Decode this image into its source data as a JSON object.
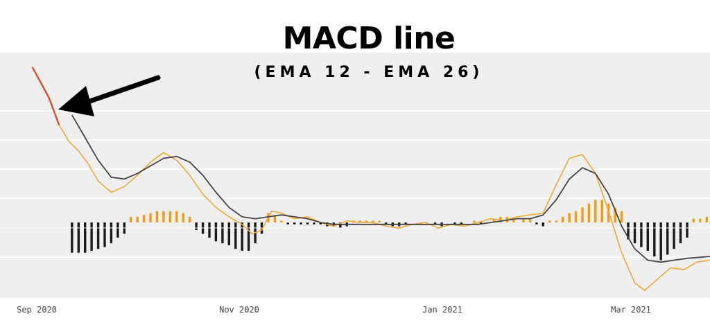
{
  "title": "MACD line",
  "subtitle": "(EMA 12 - EMA 26)",
  "colors": {
    "plot_background": "#efefef",
    "grid": "#ffffff",
    "macd_line": "#f0a830",
    "signal_line": "#444444",
    "hist_positive": "#f39c12",
    "hist_negative": "#1a1a1a",
    "highlight": "#e04a2a",
    "arrow": "#000000"
  },
  "chart_data": {
    "type": "line",
    "title": "MACD line",
    "subtitle": "(EMA 12 - EMA 26)",
    "x_tick_labels": [
      "Sep 2020",
      "Nov 2020",
      "Jan 2021",
      "Mar 2021"
    ],
    "xlim": [
      "2020-08-26",
      "2021-03-31"
    ],
    "ylim": [
      -4,
      9
    ],
    "grid": true,
    "annotation": "arrow pointing to the start of the MACD line",
    "series": [
      {
        "role": "macd",
        "color": "#f0a830",
        "points": [
          [
            "2020-09-05",
            8.2
          ],
          [
            "2020-09-10",
            6.6
          ],
          [
            "2020-09-13",
            5.2
          ],
          [
            "2020-09-16",
            4.3
          ],
          [
            "2020-09-19",
            3.8
          ],
          [
            "2020-09-22",
            3.1
          ],
          [
            "2020-09-25",
            2.2
          ],
          [
            "2020-09-29",
            1.6
          ],
          [
            "2020-10-03",
            1.9
          ],
          [
            "2020-10-07",
            2.5
          ],
          [
            "2020-10-11",
            3.2
          ],
          [
            "2020-10-15",
            3.7
          ],
          [
            "2020-10-19",
            3.3
          ],
          [
            "2020-10-23",
            2.5
          ],
          [
            "2020-10-27",
            1.5
          ],
          [
            "2020-10-31",
            0.8
          ],
          [
            "2020-11-04",
            0.3
          ],
          [
            "2020-11-08",
            -0.1
          ],
          [
            "2020-11-11",
            -0.6
          ],
          [
            "2020-11-14",
            -0.4
          ],
          [
            "2020-11-17",
            0.6
          ],
          [
            "2020-11-20",
            0.5
          ],
          [
            "2020-11-24",
            0.2
          ],
          [
            "2020-11-28",
            0.3
          ],
          [
            "2020-12-02",
            0.0
          ],
          [
            "2020-12-06",
            -0.2
          ],
          [
            "2020-12-10",
            0.1
          ],
          [
            "2020-12-14",
            0.0
          ],
          [
            "2020-12-18",
            0.0
          ],
          [
            "2020-12-22",
            -0.2
          ],
          [
            "2020-12-26",
            -0.3
          ],
          [
            "2020-12-30",
            -0.1
          ],
          [
            "2021-01-03",
            0.0
          ],
          [
            "2021-01-07",
            -0.3
          ],
          [
            "2021-01-11",
            -0.1
          ],
          [
            "2021-01-15",
            -0.2
          ],
          [
            "2021-01-19",
            0.0
          ],
          [
            "2021-01-23",
            0.2
          ],
          [
            "2021-01-27",
            0.1
          ],
          [
            "2021-01-31",
            0.3
          ],
          [
            "2021-02-04",
            0.4
          ],
          [
            "2021-02-08",
            0.5
          ],
          [
            "2021-02-12",
            2.0
          ],
          [
            "2021-02-16",
            3.4
          ],
          [
            "2021-02-20",
            3.6
          ],
          [
            "2021-02-24",
            2.6
          ],
          [
            "2021-02-28",
            0.6
          ],
          [
            "2021-03-04",
            -1.6
          ],
          [
            "2021-03-08",
            -3.2
          ],
          [
            "2021-03-11",
            -3.6
          ],
          [
            "2021-03-15",
            -3.0
          ],
          [
            "2021-03-19",
            -2.4
          ],
          [
            "2021-03-23",
            -2.5
          ],
          [
            "2021-03-27",
            -2.1
          ],
          [
            "2021-03-31",
            -2.0
          ]
        ]
      },
      {
        "role": "signal",
        "color": "#444444",
        "points": [
          [
            "2020-09-17",
            5.7
          ],
          [
            "2020-09-21",
            4.5
          ],
          [
            "2020-09-25",
            3.3
          ],
          [
            "2020-09-29",
            2.4
          ],
          [
            "2020-10-03",
            2.3
          ],
          [
            "2020-10-07",
            2.6
          ],
          [
            "2020-10-11",
            3.0
          ],
          [
            "2020-10-15",
            3.4
          ],
          [
            "2020-10-19",
            3.5
          ],
          [
            "2020-10-23",
            3.2
          ],
          [
            "2020-10-27",
            2.5
          ],
          [
            "2020-10-31",
            1.6
          ],
          [
            "2020-11-04",
            0.8
          ],
          [
            "2020-11-08",
            0.3
          ],
          [
            "2020-11-12",
            0.2
          ],
          [
            "2020-11-16",
            0.3
          ],
          [
            "2020-11-20",
            0.4
          ],
          [
            "2020-11-24",
            0.3
          ],
          [
            "2020-11-28",
            0.2
          ],
          [
            "2020-12-02",
            0.0
          ],
          [
            "2020-12-06",
            -0.1
          ],
          [
            "2020-12-10",
            -0.1
          ],
          [
            "2020-12-14",
            -0.1
          ],
          [
            "2020-12-18",
            -0.1
          ],
          [
            "2020-12-22",
            -0.1
          ],
          [
            "2020-12-26",
            -0.1
          ],
          [
            "2020-12-30",
            -0.1
          ],
          [
            "2021-01-03",
            -0.1
          ],
          [
            "2021-01-07",
            -0.1
          ],
          [
            "2021-01-11",
            -0.1
          ],
          [
            "2021-01-15",
            -0.1
          ],
          [
            "2021-01-19",
            -0.1
          ],
          [
            "2021-01-23",
            0.0
          ],
          [
            "2021-01-27",
            0.1
          ],
          [
            "2021-01-31",
            0.2
          ],
          [
            "2021-02-04",
            0.2
          ],
          [
            "2021-02-08",
            0.4
          ],
          [
            "2021-02-12",
            1.2
          ],
          [
            "2021-02-16",
            2.3
          ],
          [
            "2021-02-20",
            2.9
          ],
          [
            "2021-02-24",
            2.6
          ],
          [
            "2021-02-28",
            1.5
          ],
          [
            "2021-03-04",
            -0.2
          ],
          [
            "2021-03-08",
            -1.4
          ],
          [
            "2021-03-12",
            -2.0
          ],
          [
            "2021-03-16",
            -2.1
          ],
          [
            "2021-03-20",
            -2.0
          ],
          [
            "2021-03-24",
            -1.9
          ],
          [
            "2021-03-31",
            -1.8
          ]
        ]
      }
    ],
    "histogram": {
      "series_role": "macd_minus_signal",
      "bars": [
        [
          "2020-09-17",
          -1.6
        ],
        [
          "2020-09-19",
          -1.6
        ],
        [
          "2020-09-21",
          -1.6
        ],
        [
          "2020-09-23",
          -1.5
        ],
        [
          "2020-09-25",
          -1.4
        ],
        [
          "2020-09-27",
          -1.3
        ],
        [
          "2020-09-29",
          -1.1
        ],
        [
          "2020-10-01",
          -0.8
        ],
        [
          "2020-10-03",
          -0.6
        ],
        [
          "2020-10-05",
          0.3
        ],
        [
          "2020-10-07",
          0.3
        ],
        [
          "2020-10-09",
          0.4
        ],
        [
          "2020-10-11",
          0.5
        ],
        [
          "2020-10-13",
          0.6
        ],
        [
          "2020-10-15",
          0.6
        ],
        [
          "2020-10-17",
          0.6
        ],
        [
          "2020-10-19",
          0.6
        ],
        [
          "2020-10-21",
          0.5
        ],
        [
          "2020-10-23",
          0.3
        ],
        [
          "2020-10-25",
          -0.4
        ],
        [
          "2020-10-27",
          -0.6
        ],
        [
          "2020-10-29",
          -0.8
        ],
        [
          "2020-10-31",
          -1.0
        ],
        [
          "2020-11-02",
          -1.1
        ],
        [
          "2020-11-04",
          -1.2
        ],
        [
          "2020-11-06",
          -1.4
        ],
        [
          "2020-11-08",
          -1.5
        ],
        [
          "2020-11-10",
          -1.5
        ],
        [
          "2020-11-12",
          -1.1
        ],
        [
          "2020-11-14",
          -0.6
        ],
        [
          "2020-11-16",
          0.5
        ],
        [
          "2020-11-18",
          0.4
        ],
        [
          "2020-11-20",
          0.1
        ],
        [
          "2020-11-22",
          -0.1
        ],
        [
          "2020-11-24",
          -0.1
        ],
        [
          "2020-11-26",
          -0.1
        ],
        [
          "2020-11-28",
          -0.1
        ],
        [
          "2020-11-30",
          -0.1
        ],
        [
          "2020-12-02",
          -0.1
        ],
        [
          "2020-12-04",
          -0.2
        ],
        [
          "2020-12-06",
          -0.2
        ],
        [
          "2020-12-08",
          -0.3
        ],
        [
          "2020-12-10",
          -0.2
        ],
        [
          "2020-12-12",
          0.1
        ],
        [
          "2020-12-14",
          0.1
        ],
        [
          "2020-12-16",
          0.1
        ],
        [
          "2020-12-18",
          0.1
        ],
        [
          "2020-12-20",
          0.1
        ],
        [
          "2020-12-22",
          -0.1
        ],
        [
          "2020-12-24",
          -0.2
        ],
        [
          "2020-12-26",
          -0.2
        ],
        [
          "2020-12-28",
          -0.1
        ],
        [
          "2021-01-06",
          -0.1
        ],
        [
          "2021-01-08",
          -0.2
        ],
        [
          "2021-01-12",
          -0.1
        ],
        [
          "2021-01-14",
          -0.1
        ],
        [
          "2021-01-18",
          0.1
        ],
        [
          "2021-01-20",
          -0.1
        ],
        [
          "2021-01-24",
          0.2
        ],
        [
          "2021-01-26",
          0.3
        ],
        [
          "2021-01-28",
          0.3
        ],
        [
          "2021-01-30",
          0.2
        ],
        [
          "2021-02-02",
          0.2
        ],
        [
          "2021-02-04",
          0.2
        ],
        [
          "2021-02-06",
          -0.1
        ],
        [
          "2021-02-08",
          -0.2
        ],
        [
          "2021-02-10",
          0.1
        ],
        [
          "2021-02-12",
          0.1
        ],
        [
          "2021-02-14",
          0.3
        ],
        [
          "2021-02-16",
          0.5
        ],
        [
          "2021-02-18",
          0.6
        ],
        [
          "2021-02-20",
          0.8
        ],
        [
          "2021-02-22",
          1.0
        ],
        [
          "2021-02-24",
          1.2
        ],
        [
          "2021-02-26",
          1.2
        ],
        [
          "2021-02-28",
          1.0
        ],
        [
          "2021-03-02",
          0.8
        ],
        [
          "2021-03-04",
          0.6
        ],
        [
          "2021-03-06",
          -0.9
        ],
        [
          "2021-03-08",
          -1.1
        ],
        [
          "2021-03-10",
          -1.3
        ],
        [
          "2021-03-12",
          -1.5
        ],
        [
          "2021-03-14",
          -1.8
        ],
        [
          "2021-03-16",
          -2.0
        ],
        [
          "2021-03-18",
          -1.7
        ],
        [
          "2021-03-20",
          -1.4
        ],
        [
          "2021-03-22",
          -1.1
        ],
        [
          "2021-03-24",
          -0.8
        ],
        [
          "2021-03-26",
          0.2
        ],
        [
          "2021-03-28",
          0.2
        ],
        [
          "2021-03-30",
          0.3
        ]
      ]
    }
  }
}
